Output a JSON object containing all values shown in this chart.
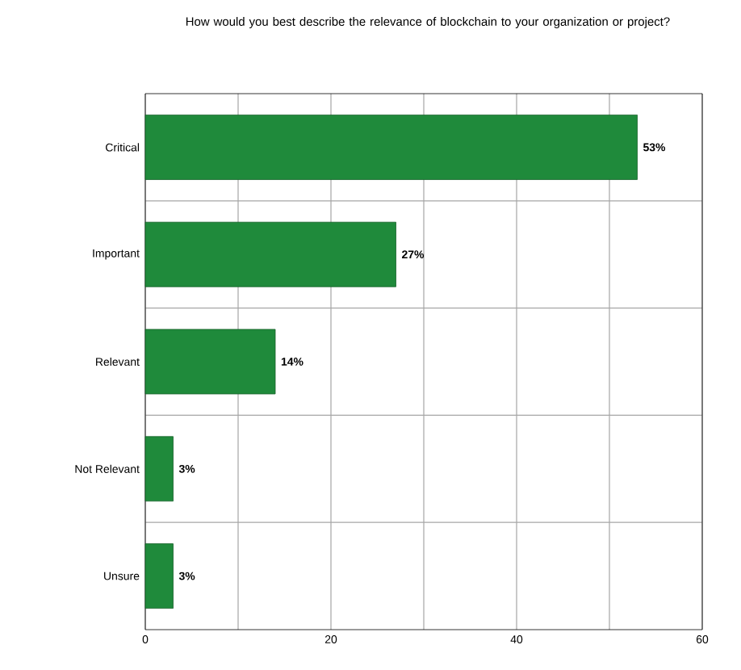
{
  "chart_data": {
    "type": "bar",
    "orientation": "horizontal",
    "title": "How would you best describe the relevance of blockchain to your organization or project?",
    "categories": [
      "Critical",
      "Important",
      "Relevant",
      "Not Relevant",
      "Unsure"
    ],
    "values": [
      53,
      27,
      14,
      3,
      3
    ],
    "color": "#1f8a3b",
    "value_labels": [
      "53%",
      "27%",
      "14%",
      "3%",
      "3%"
    ],
    "xlim": [
      0,
      60
    ],
    "xticks": [
      0,
      {
        "value": 10,
        "label": null
      },
      20,
      {
        "value": 30,
        "label": null
      },
      40,
      {
        "value": 50,
        "label": null
      },
      60
    ],
    "grid": true
  }
}
